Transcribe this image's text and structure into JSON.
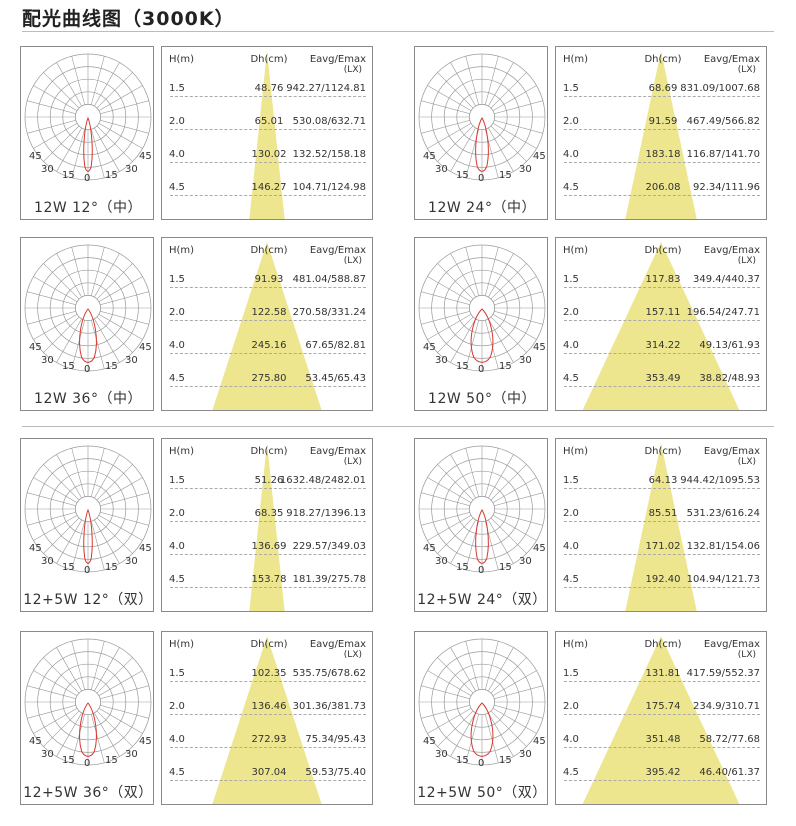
{
  "page_title": "配光曲线图（3000K）",
  "table_headers": {
    "h": "H(m)",
    "dh": "Dh(cm)",
    "eavg": "Eavg/Emax",
    "unit": "(LX)"
  },
  "polar_ticks": {
    "p45l": "45",
    "p45r": "45",
    "p30l": "30",
    "p30r": "30",
    "p15l": "15",
    "p15r": "15",
    "p0": "0"
  },
  "colors": {
    "beam": "#ede68f",
    "curve": "#d9352b",
    "grid": "#9a9a9a",
    "border": "#8a8a8a"
  },
  "panels": [
    {
      "label": "12W 12°（中）",
      "beam_angle": 12,
      "rows": [
        {
          "h": "1.5",
          "dh": "48.76",
          "eavg": "942.27/1124.81"
        },
        {
          "h": "2.0",
          "dh": "65.01",
          "eavg": "530.08/632.71"
        },
        {
          "h": "4.0",
          "dh": "130.02",
          "eavg": "132.52/158.18"
        },
        {
          "h": "4.5",
          "dh": "146.27",
          "eavg": "104.71/124.98"
        }
      ]
    },
    {
      "label": "12W 24°（中）",
      "beam_angle": 24,
      "rows": [
        {
          "h": "1.5",
          "dh": "68.69",
          "eavg": "831.09/1007.68"
        },
        {
          "h": "2.0",
          "dh": "91.59",
          "eavg": "467.49/566.82"
        },
        {
          "h": "4.0",
          "dh": "183.18",
          "eavg": "116.87/141.70"
        },
        {
          "h": "4.5",
          "dh": "206.08",
          "eavg": "92.34/111.96"
        }
      ]
    },
    {
      "label": "12W 36°（中）",
      "beam_angle": 36,
      "rows": [
        {
          "h": "1.5",
          "dh": "91.93",
          "eavg": "481.04/588.87"
        },
        {
          "h": "2.0",
          "dh": "122.58",
          "eavg": "270.58/331.24"
        },
        {
          "h": "4.0",
          "dh": "245.16",
          "eavg": "67.65/82.81"
        },
        {
          "h": "4.5",
          "dh": "275.80",
          "eavg": "53.45/65.43"
        }
      ]
    },
    {
      "label": "12W 50°（中）",
      "beam_angle": 50,
      "rows": [
        {
          "h": "1.5",
          "dh": "117.83",
          "eavg": "349.4/440.37"
        },
        {
          "h": "2.0",
          "dh": "157.11",
          "eavg": "196.54/247.71"
        },
        {
          "h": "4.0",
          "dh": "314.22",
          "eavg": "49.13/61.93"
        },
        {
          "h": "4.5",
          "dh": "353.49",
          "eavg": "38.82/48.93"
        }
      ]
    },
    {
      "label": "12+5W 12°（双）",
      "beam_angle": 12,
      "rows": [
        {
          "h": "1.5",
          "dh": "51.26",
          "eavg": "1632.48/2482.01"
        },
        {
          "h": "2.0",
          "dh": "68.35",
          "eavg": "918.27/1396.13"
        },
        {
          "h": "4.0",
          "dh": "136.69",
          "eavg": "229.57/349.03"
        },
        {
          "h": "4.5",
          "dh": "153.78",
          "eavg": "181.39/275.78"
        }
      ]
    },
    {
      "label": "12+5W 24°（双）",
      "beam_angle": 24,
      "rows": [
        {
          "h": "1.5",
          "dh": "64.13",
          "eavg": "944.42/1095.53"
        },
        {
          "h": "2.0",
          "dh": "85.51",
          "eavg": "531.23/616.24"
        },
        {
          "h": "4.0",
          "dh": "171.02",
          "eavg": "132.81/154.06"
        },
        {
          "h": "4.5",
          "dh": "192.40",
          "eavg": "104.94/121.73"
        }
      ]
    },
    {
      "label": "12+5W 36°（双）",
      "beam_angle": 36,
      "rows": [
        {
          "h": "1.5",
          "dh": "102.35",
          "eavg": "535.75/678.62"
        },
        {
          "h": "2.0",
          "dh": "136.46",
          "eavg": "301.36/381.73"
        },
        {
          "h": "4.0",
          "dh": "272.93",
          "eavg": "75.34/95.43"
        },
        {
          "h": "4.5",
          "dh": "307.04",
          "eavg": "59.53/75.40"
        }
      ]
    },
    {
      "label": "12+5W 50°（双）",
      "beam_angle": 50,
      "rows": [
        {
          "h": "1.5",
          "dh": "131.81",
          "eavg": "417.59/552.37"
        },
        {
          "h": "2.0",
          "dh": "175.74",
          "eavg": "234.9/310.71"
        },
        {
          "h": "4.0",
          "dh": "351.48",
          "eavg": "58.72/77.68"
        },
        {
          "h": "4.5",
          "dh": "395.42",
          "eavg": "46.40/61.37"
        }
      ]
    }
  ]
}
